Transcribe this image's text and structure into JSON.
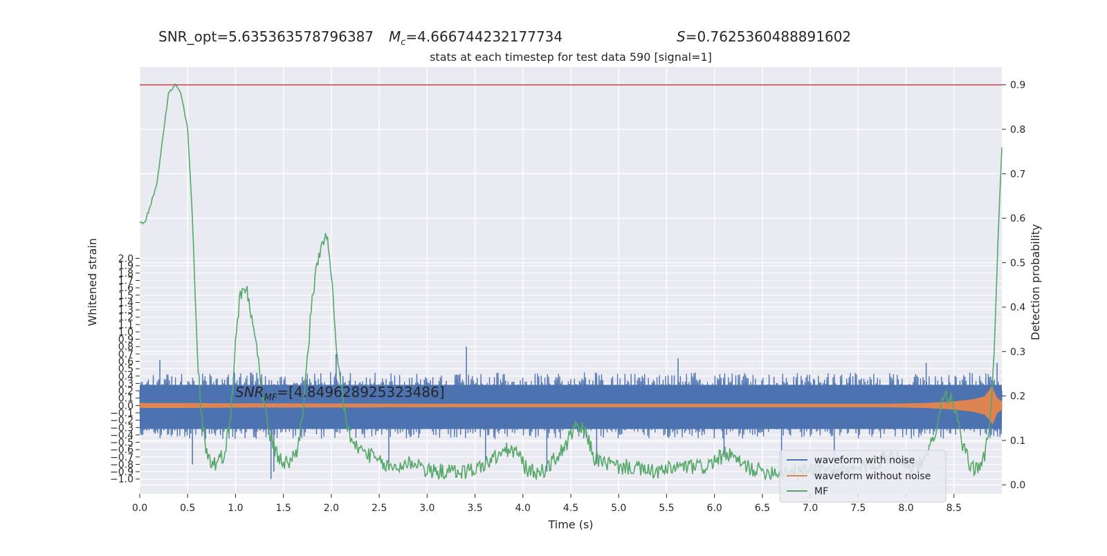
{
  "chart_data": {
    "type": "line",
    "suptitle": {
      "snr_opt": "SNR_opt=5.635363578796387",
      "mc_prefix": "M",
      "mc_sub": "c",
      "mc_value": "=4.666744232177734",
      "s_prefix": "S",
      "s_value": "=0.7625360488891602"
    },
    "title": "stats at each timestep for test data 590 [signal=1]",
    "xlabel": "Time (s)",
    "ylabel_left": "Whitened strain",
    "ylabel_right": "Detection probability",
    "annotation": {
      "prefix": "SNR",
      "sub": "MF",
      "value": "=[4.849628925323486]"
    },
    "xlim": [
      0,
      9.0
    ],
    "left_ylim": [
      -1.2,
      4.6
    ],
    "right_ylim": [
      -0.02,
      0.94
    ],
    "x_ticks": [
      0.0,
      0.5,
      1.0,
      1.5,
      2.0,
      2.5,
      3.0,
      3.5,
      4.0,
      4.5,
      5.0,
      5.5,
      6.0,
      6.5,
      7.0,
      7.5,
      8.0,
      8.5
    ],
    "left_ticks": [
      -1.0,
      -0.9,
      -0.8,
      -0.7,
      -0.6,
      -0.5,
      -0.4,
      -0.3,
      -0.2,
      -0.1,
      0.0,
      0.1,
      0.2,
      0.3,
      0.4,
      0.5,
      0.6,
      0.7,
      0.8,
      0.9,
      1.0,
      1.1,
      1.2,
      1.3,
      1.4,
      1.5,
      1.6,
      1.7,
      1.8,
      1.9,
      2.0
    ],
    "right_ticks": [
      0.0,
      0.1,
      0.2,
      0.3,
      0.4,
      0.5,
      0.6,
      0.7,
      0.8,
      0.9
    ],
    "threshold": 0.9,
    "grid": true,
    "legend_position": "bottom-right",
    "series": [
      {
        "name": "waveform with noise",
        "axis": "left",
        "color": "#4c72b0",
        "envelope_upper": [
          [
            0.0,
            0.42
          ],
          [
            1.0,
            0.45
          ],
          [
            2.0,
            0.46
          ],
          [
            3.0,
            0.43
          ],
          [
            4.0,
            0.45
          ],
          [
            5.0,
            0.45
          ],
          [
            6.0,
            0.45
          ],
          [
            7.0,
            0.44
          ],
          [
            8.0,
            0.45
          ],
          [
            9.0,
            0.45
          ]
        ],
        "envelope_lower": [
          [
            0.0,
            -0.45
          ],
          [
            1.0,
            -0.46
          ],
          [
            2.0,
            -0.45
          ],
          [
            3.0,
            -0.45
          ],
          [
            4.0,
            -0.46
          ],
          [
            5.0,
            -0.45
          ],
          [
            6.0,
            -0.45
          ],
          [
            7.0,
            -0.45
          ],
          [
            8.0,
            -0.45
          ],
          [
            9.0,
            -0.46
          ]
        ],
        "peaks": [
          [
            0.21,
            0.62
          ],
          [
            0.55,
            -0.8
          ],
          [
            1.37,
            -1.0
          ],
          [
            1.4,
            -0.9
          ],
          [
            2.05,
            0.7
          ],
          [
            2.6,
            -0.78
          ],
          [
            3.41,
            0.8
          ],
          [
            3.61,
            -0.8
          ],
          [
            4.25,
            -0.9
          ],
          [
            4.77,
            -0.8
          ],
          [
            5.62,
            0.64
          ],
          [
            6.1,
            -0.7
          ],
          [
            6.7,
            -0.85
          ],
          [
            7.25,
            -0.85
          ],
          [
            8.21,
            0.58
          ],
          [
            8.95,
            0.58
          ]
        ]
      },
      {
        "name": "waveform without noise",
        "axis": "left",
        "color": "#dd8452",
        "points": [
          [
            0.0,
            -0.03
          ],
          [
            0.5,
            -0.03
          ],
          [
            1.0,
            -0.025
          ],
          [
            3.0,
            -0.02
          ],
          [
            5.0,
            -0.02
          ],
          [
            7.0,
            -0.02
          ],
          [
            7.8,
            -0.02
          ],
          [
            8.2,
            -0.03
          ],
          [
            8.5,
            -0.05
          ],
          [
            8.7,
            -0.08
          ],
          [
            8.82,
            -0.12
          ],
          [
            8.88,
            -0.2
          ],
          [
            8.9,
            -0.25
          ],
          [
            8.92,
            -0.2
          ],
          [
            8.95,
            -0.1
          ],
          [
            9.0,
            -0.05
          ]
        ],
        "points_upper": [
          [
            0.0,
            0.03
          ],
          [
            0.5,
            0.03
          ],
          [
            1.0,
            0.025
          ],
          [
            3.0,
            0.02
          ],
          [
            5.0,
            0.02
          ],
          [
            7.0,
            0.02
          ],
          [
            7.8,
            0.02
          ],
          [
            8.2,
            0.03
          ],
          [
            8.5,
            0.05
          ],
          [
            8.7,
            0.08
          ],
          [
            8.82,
            0.12
          ],
          [
            8.88,
            0.22
          ],
          [
            8.9,
            0.26
          ],
          [
            8.92,
            0.18
          ],
          [
            8.95,
            0.1
          ],
          [
            9.0,
            0.05
          ]
        ]
      },
      {
        "name": "MF",
        "axis": "right",
        "color": "#55a868",
        "points": [
          [
            0.0,
            0.59
          ],
          [
            0.05,
            0.59
          ],
          [
            0.1,
            0.62
          ],
          [
            0.18,
            0.68
          ],
          [
            0.25,
            0.8
          ],
          [
            0.3,
            0.88
          ],
          [
            0.37,
            0.9
          ],
          [
            0.43,
            0.88
          ],
          [
            0.5,
            0.8
          ],
          [
            0.55,
            0.6
          ],
          [
            0.6,
            0.3
          ],
          [
            0.65,
            0.15
          ],
          [
            0.7,
            0.07
          ],
          [
            0.75,
            0.05
          ],
          [
            0.8,
            0.05
          ],
          [
            0.88,
            0.07
          ],
          [
            0.95,
            0.15
          ],
          [
            1.0,
            0.33
          ],
          [
            1.05,
            0.43
          ],
          [
            1.12,
            0.44
          ],
          [
            1.2,
            0.35
          ],
          [
            1.28,
            0.2
          ],
          [
            1.35,
            0.12
          ],
          [
            1.42,
            0.07
          ],
          [
            1.5,
            0.05
          ],
          [
            1.56,
            0.05
          ],
          [
            1.65,
            0.08
          ],
          [
            1.72,
            0.2
          ],
          [
            1.8,
            0.42
          ],
          [
            1.9,
            0.55
          ],
          [
            1.95,
            0.56
          ],
          [
            2.0,
            0.47
          ],
          [
            2.05,
            0.3
          ],
          [
            2.15,
            0.15
          ],
          [
            2.22,
            0.09
          ],
          [
            2.3,
            0.08
          ],
          [
            2.38,
            0.07
          ],
          [
            2.45,
            0.06
          ],
          [
            2.5,
            0.05
          ],
          [
            2.6,
            0.04
          ],
          [
            2.7,
            0.04
          ],
          [
            2.8,
            0.05
          ],
          [
            2.9,
            0.05
          ],
          [
            3.0,
            0.03
          ],
          [
            3.1,
            0.03
          ],
          [
            3.25,
            0.03
          ],
          [
            3.4,
            0.03
          ],
          [
            3.55,
            0.04
          ],
          [
            3.7,
            0.06
          ],
          [
            3.85,
            0.08
          ],
          [
            3.95,
            0.07
          ],
          [
            4.05,
            0.03
          ],
          [
            4.2,
            0.03
          ],
          [
            4.35,
            0.06
          ],
          [
            4.45,
            0.09
          ],
          [
            4.55,
            0.13
          ],
          [
            4.65,
            0.12
          ],
          [
            4.75,
            0.06
          ],
          [
            4.85,
            0.05
          ],
          [
            5.0,
            0.04
          ],
          [
            5.15,
            0.04
          ],
          [
            5.3,
            0.03
          ],
          [
            5.45,
            0.03
          ],
          [
            5.6,
            0.04
          ],
          [
            5.75,
            0.04
          ],
          [
            5.9,
            0.04
          ],
          [
            6.05,
            0.06
          ],
          [
            6.15,
            0.07
          ],
          [
            6.25,
            0.05
          ],
          [
            6.35,
            0.04
          ],
          [
            6.5,
            0.03
          ],
          [
            6.65,
            0.03
          ],
          [
            6.8,
            0.03
          ],
          [
            6.95,
            0.03
          ],
          [
            7.1,
            0.04
          ],
          [
            7.25,
            0.03
          ],
          [
            7.4,
            0.03
          ],
          [
            7.55,
            0.04
          ],
          [
            7.7,
            0.05
          ],
          [
            7.85,
            0.07
          ],
          [
            7.95,
            0.06
          ],
          [
            8.05,
            0.04
          ],
          [
            8.2,
            0.05
          ],
          [
            8.3,
            0.12
          ],
          [
            8.4,
            0.21
          ],
          [
            8.5,
            0.18
          ],
          [
            8.6,
            0.08
          ],
          [
            8.68,
            0.04
          ],
          [
            8.75,
            0.04
          ],
          [
            8.82,
            0.06
          ],
          [
            8.88,
            0.15
          ],
          [
            8.92,
            0.3
          ],
          [
            8.96,
            0.55
          ],
          [
            9.0,
            0.76
          ]
        ]
      }
    ]
  }
}
